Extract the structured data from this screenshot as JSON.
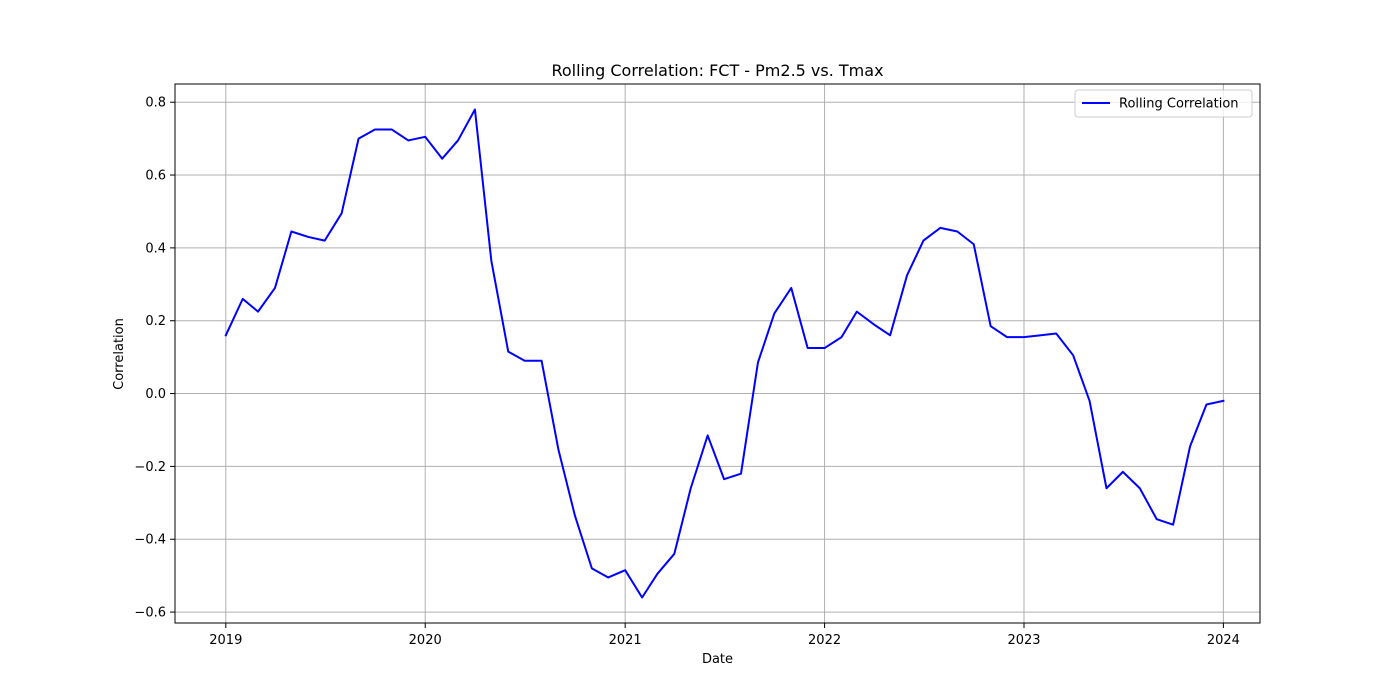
{
  "chart_data": {
    "type": "line",
    "title": "Rolling Correlation: FCT - Pm2.5 vs. Tmax",
    "xlabel": "Date",
    "ylabel": "Correlation",
    "x_axis_kind": "date",
    "xlim": [
      "2018-09-30",
      "2024-03-08"
    ],
    "ylim": [
      -0.63,
      0.85
    ],
    "xticks": [
      "2019-01-01",
      "2020-01-01",
      "2021-01-01",
      "2022-01-01",
      "2023-01-01",
      "2024-01-01"
    ],
    "xtick_labels": [
      "2019",
      "2020",
      "2021",
      "2022",
      "2023",
      "2024"
    ],
    "yticks": [
      -0.6,
      -0.4,
      -0.2,
      0.0,
      0.2,
      0.4,
      0.6,
      0.8
    ],
    "ytick_labels": [
      "−0.6",
      "−0.4",
      "−0.2",
      "0.0",
      "0.2",
      "0.4",
      "0.6",
      "0.8"
    ],
    "grid": true,
    "legend_position": "top-right",
    "colors": {
      "line": "#0000ff",
      "grid": "#b0b0b0",
      "axes": "#000000",
      "legend_border": "#cccccc"
    },
    "series": [
      {
        "name": "Rolling Correlation",
        "x": [
          "2019-01-01",
          "2019-02-01",
          "2019-03-01",
          "2019-04-01",
          "2019-05-01",
          "2019-06-01",
          "2019-07-01",
          "2019-08-01",
          "2019-09-01",
          "2019-10-01",
          "2019-11-01",
          "2019-12-01",
          "2020-01-01",
          "2020-02-01",
          "2020-03-01",
          "2020-04-01",
          "2020-05-01",
          "2020-06-01",
          "2020-07-01",
          "2020-08-01",
          "2020-09-01",
          "2020-10-01",
          "2020-11-01",
          "2020-12-01",
          "2021-01-01",
          "2021-02-01",
          "2021-03-01",
          "2021-04-01",
          "2021-05-01",
          "2021-06-01",
          "2021-07-01",
          "2021-08-01",
          "2021-09-01",
          "2021-10-01",
          "2021-11-01",
          "2021-12-01",
          "2022-01-01",
          "2022-02-01",
          "2022-03-01",
          "2022-04-01",
          "2022-05-01",
          "2022-06-01",
          "2022-07-01",
          "2022-08-01",
          "2022-09-01",
          "2022-10-01",
          "2022-11-01",
          "2022-12-01",
          "2023-01-01",
          "2023-02-01",
          "2023-03-01",
          "2023-04-01",
          "2023-05-01",
          "2023-06-01",
          "2023-07-01",
          "2023-08-01",
          "2023-09-01",
          "2023-10-01",
          "2023-11-01",
          "2023-12-01",
          "2024-01-01"
        ],
        "values": [
          0.16,
          0.26,
          0.225,
          0.29,
          0.445,
          0.43,
          0.42,
          0.495,
          0.7,
          0.725,
          0.725,
          0.695,
          0.705,
          0.645,
          0.695,
          0.78,
          0.365,
          0.115,
          0.09,
          0.09,
          -0.155,
          -0.335,
          -0.48,
          -0.505,
          -0.485,
          -0.56,
          -0.495,
          -0.44,
          -0.26,
          -0.115,
          -0.235,
          -0.22,
          0.085,
          0.22,
          0.29,
          0.125,
          0.125,
          0.155,
          0.225,
          0.19,
          0.16,
          0.325,
          0.42,
          0.455,
          0.445,
          0.41,
          0.185,
          0.155,
          0.155,
          0.16,
          0.165,
          0.105,
          -0.02,
          -0.26,
          -0.215,
          -0.26,
          -0.345,
          -0.36,
          -0.145,
          -0.03,
          -0.02
        ]
      }
    ]
  }
}
